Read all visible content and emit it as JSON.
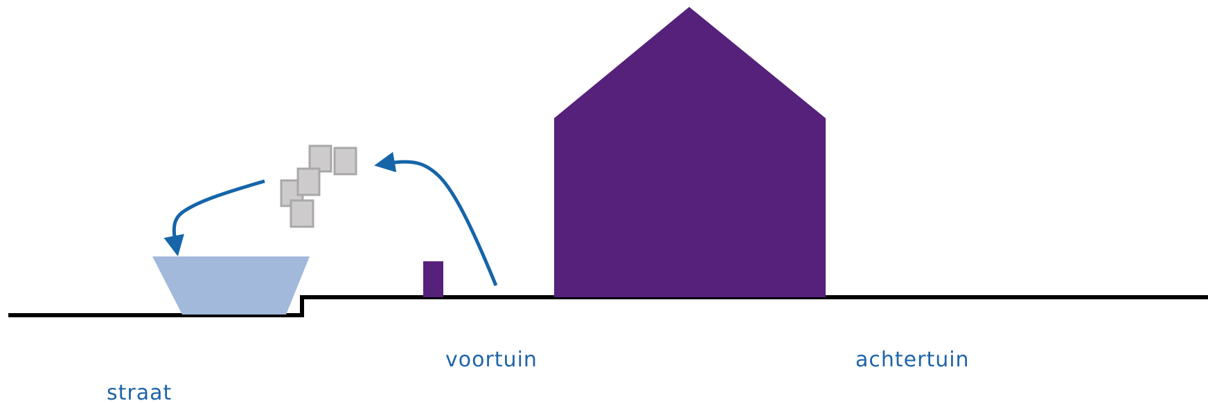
{
  "labels": {
    "street": "straat",
    "front_garden": "voortuin",
    "back_garden": "achtertuin"
  },
  "colors": {
    "house": "#56217a",
    "ground": "#000000",
    "container": "#a2b9db",
    "debris_fill": "#cdcbcc",
    "debris_stroke": "#a8a8a8",
    "arrow": "#1565a8",
    "label_text": "#1e64a8"
  },
  "icons": {
    "house": "house-icon",
    "container": "waste-container-icon",
    "debris": "debris-blocks-icon",
    "small_post": "garden-post-icon"
  }
}
